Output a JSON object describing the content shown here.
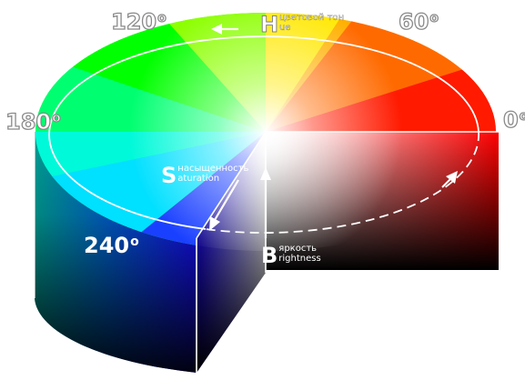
{
  "angles": {
    "a0": {
      "num": "0",
      "sup": "o"
    },
    "a60": {
      "num": "60",
      "sup": "o"
    },
    "a120": {
      "num": "120",
      "sup": "o"
    },
    "a180": {
      "num": "180",
      "sup": "o"
    },
    "a240": {
      "num": "240",
      "sup": "o"
    }
  },
  "hue": {
    "initial": "H",
    "rest": "ue",
    "translation": "цветовой тон"
  },
  "saturation": {
    "initial": "S",
    "rest": "aturation",
    "translation": "насыщенность"
  },
  "brightness": {
    "initial": "B",
    "rest": "rightness",
    "translation": "яркость"
  }
}
